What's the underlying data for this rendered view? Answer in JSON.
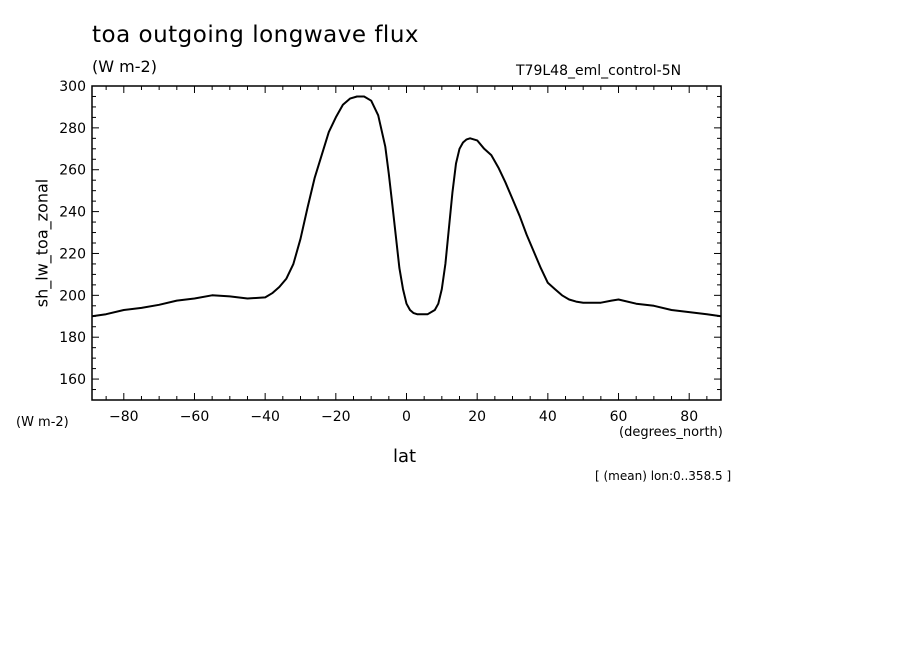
{
  "header": {
    "title": "toa outgoing longwave flux",
    "units": "(W m-2)",
    "run": "T79L48_eml_control-5N"
  },
  "footer": {
    "left_units": "(W m-2)",
    "x_units": "(degrees_north)",
    "x_label": "lat",
    "mean_note": "[ (mean) lon:0..358.5 ]"
  },
  "colors": {
    "line": "#000000",
    "axes": "#000000",
    "background": "#ffffff"
  },
  "chart_data": {
    "type": "line",
    "title": "toa outgoing longwave flux",
    "subtitle": "(W m-2)",
    "xlabel": "lat",
    "ylabel": "sh_lw_toa_zonal",
    "xlim": [
      -89,
      89
    ],
    "ylim": [
      150,
      300
    ],
    "x_ticks": [
      -80,
      -60,
      -40,
      -20,
      0,
      20,
      40,
      60,
      80
    ],
    "y_ticks": [
      160,
      180,
      200,
      220,
      240,
      260,
      280,
      300
    ],
    "grid": false,
    "series": [
      {
        "x": [
          -89,
          -85,
          -80,
          -75,
          -70,
          -65,
          -60,
          -55,
          -50,
          -45,
          -40,
          -38,
          -36,
          -34,
          -32,
          -30,
          -28,
          -26,
          -24,
          -22,
          -20,
          -18,
          -16,
          -14,
          -12,
          -10,
          -8,
          -6,
          -5,
          -4,
          -3,
          -2,
          -1,
          0,
          1,
          2,
          3,
          4,
          6,
          8,
          9,
          10,
          11,
          12,
          13,
          14,
          15,
          16,
          17,
          18,
          20,
          22,
          24,
          26,
          28,
          30,
          32,
          34,
          36,
          38,
          40,
          42,
          44,
          46,
          48,
          50,
          55,
          58,
          60,
          65,
          70,
          75,
          80,
          85,
          89
        ],
        "y": [
          190,
          191,
          193,
          194,
          195.5,
          197.5,
          198.5,
          200,
          199.5,
          198.5,
          199,
          201,
          204,
          208,
          215,
          227,
          242,
          256,
          267,
          278,
          285,
          291,
          294,
          295,
          295,
          293,
          286,
          271,
          258,
          243,
          228,
          213,
          203,
          196,
          193,
          191.5,
          191,
          191,
          191,
          193,
          196,
          203,
          215,
          232,
          249,
          263,
          270,
          273,
          274.5,
          275,
          274,
          270,
          267,
          261,
          254,
          246,
          238,
          229,
          221,
          213,
          206,
          203,
          200,
          198,
          197,
          196.5,
          196.5,
          197.5,
          198,
          196,
          195,
          193,
          192,
          191,
          190
        ]
      }
    ]
  }
}
